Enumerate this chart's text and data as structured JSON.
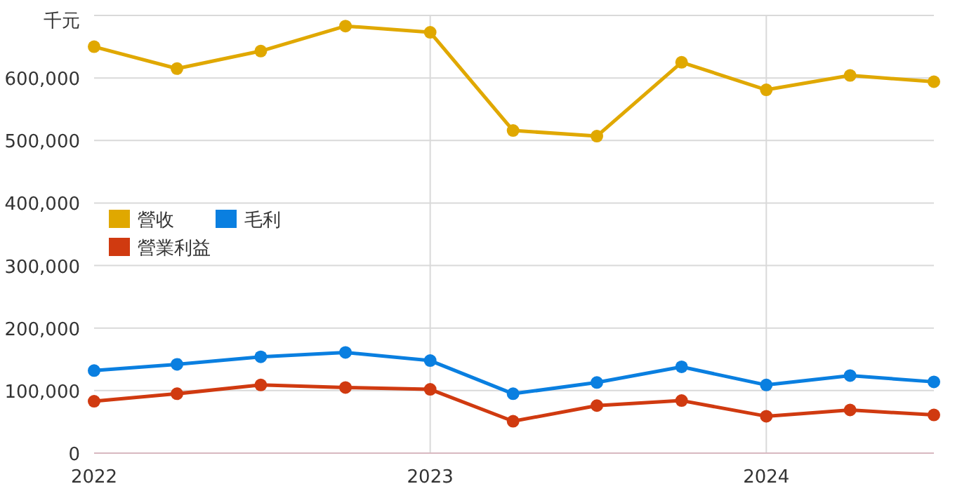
{
  "chart_data": {
    "type": "line",
    "ylabel": "千元",
    "x": [
      "2022-01",
      "2022-04",
      "2022-07",
      "2022-10",
      "2023-01",
      "2023-04",
      "2023-07",
      "2023-10",
      "2024-01",
      "2024-04",
      "2024-07"
    ],
    "series": [
      {
        "name": "營收",
        "color": "#e0a800",
        "values": [
          650000,
          615000,
          643000,
          683000,
          673000,
          516000,
          507000,
          625000,
          581000,
          604000,
          594000
        ]
      },
      {
        "name": "毛利",
        "color": "#0a7fe0",
        "values": [
          132000,
          142000,
          154000,
          161000,
          148000,
          95000,
          113000,
          138000,
          109000,
          124000,
          114000
        ]
      },
      {
        "name": "營業利益",
        "color": "#d03a10",
        "values": [
          83000,
          95000,
          109000,
          105000,
          102000,
          51000,
          76000,
          84000,
          59000,
          69000,
          61000
        ]
      }
    ],
    "xlim": [
      "2022-01",
      "2024-07"
    ],
    "xticks": [
      "2022",
      "2023",
      "2024"
    ],
    "ylim": [
      0,
      700000
    ],
    "yticks": [
      0,
      {
        "value": 100000,
        "label": "100,000"
      },
      {
        "value": 200000,
        "label": "200,000"
      },
      {
        "value": 300000,
        "label": "300,000"
      },
      {
        "value": 400000,
        "label": "400,000"
      },
      {
        "value": 500000,
        "label": "500,000"
      },
      {
        "value": 600000,
        "label": "600,000"
      },
      {
        "value": 700000,
        "label": null
      }
    ],
    "grid": true,
    "legend": "left",
    "marker": "circle"
  }
}
